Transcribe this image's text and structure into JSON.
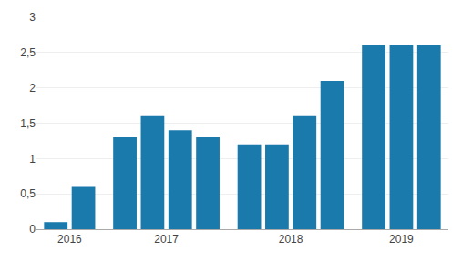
{
  "chart_data": {
    "type": "bar",
    "categories": [
      "2016",
      null,
      "2017",
      null,
      null,
      null,
      "2018",
      null,
      null,
      null,
      "2019",
      null,
      null
    ],
    "values": [
      0.1,
      0.6,
      1.3,
      1.6,
      1.4,
      1.3,
      1.2,
      1.2,
      1.6,
      2.1,
      2.6,
      2.6,
      2.6
    ],
    "color": "#1a7aab",
    "ylim": [
      0,
      3
    ],
    "yticks": [
      0,
      {
        "value": 0.5,
        "label": "0,5"
      },
      1,
      {
        "value": 1.5,
        "label": "1,5"
      },
      2,
      {
        "value": 2.5,
        "label": "2,5"
      },
      3
    ],
    "grid": true
  }
}
